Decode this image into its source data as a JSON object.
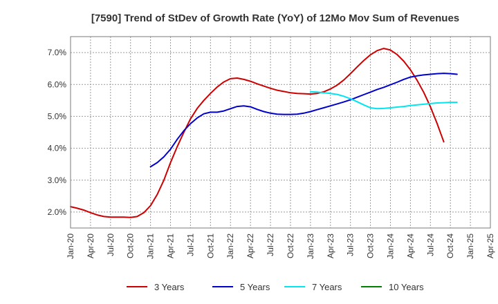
{
  "chart_data": {
    "type": "line",
    "title": "[7590]  Trend of StDev of Growth Rate (YoY) of 12Mo Mov Sum of Revenues",
    "xlabel": "",
    "ylabel": "",
    "x_ticks": [
      "Jan-20",
      "Apr-20",
      "Jul-20",
      "Oct-20",
      "Jan-21",
      "Apr-21",
      "Jul-21",
      "Oct-21",
      "Jan-22",
      "Apr-22",
      "Jul-22",
      "Oct-22",
      "Jan-23",
      "Apr-23",
      "Jul-23",
      "Oct-23",
      "Jan-24",
      "Apr-24",
      "Jul-24",
      "Oct-24",
      "Jan-25",
      "Apr-25"
    ],
    "y_ticks": [
      "2.0%",
      "3.0%",
      "4.0%",
      "5.0%",
      "6.0%",
      "7.0%"
    ],
    "ylim": [
      1.5,
      7.5
    ],
    "grid": true,
    "legend_position": "bottom",
    "series": [
      {
        "name": "3 Years",
        "color": "#cc0000",
        "start_month": 0,
        "values": [
          2.17,
          2.12,
          2.06,
          1.98,
          1.91,
          1.86,
          1.84,
          1.84,
          1.84,
          1.83,
          1.86,
          1.98,
          2.2,
          2.55,
          3.0,
          3.55,
          4.05,
          4.5,
          4.92,
          5.25,
          5.5,
          5.72,
          5.92,
          6.08,
          6.18,
          6.2,
          6.16,
          6.1,
          6.02,
          5.95,
          5.88,
          5.82,
          5.78,
          5.74,
          5.72,
          5.71,
          5.7,
          5.72,
          5.77,
          5.86,
          5.98,
          6.14,
          6.34,
          6.55,
          6.75,
          6.93,
          7.06,
          7.13,
          7.08,
          6.94,
          6.73,
          6.46,
          6.13,
          5.75,
          5.3,
          4.78,
          4.2
        ]
      },
      {
        "name": "5 Years",
        "color": "#0000cc",
        "start_month": 12,
        "values": [
          3.42,
          3.55,
          3.73,
          3.97,
          4.28,
          4.55,
          4.77,
          4.95,
          5.08,
          5.13,
          5.13,
          5.17,
          5.24,
          5.31,
          5.33,
          5.3,
          5.22,
          5.15,
          5.1,
          5.07,
          5.06,
          5.06,
          5.07,
          5.1,
          5.15,
          5.21,
          5.27,
          5.33,
          5.39,
          5.45,
          5.52,
          5.6,
          5.68,
          5.76,
          5.84,
          5.91,
          5.99,
          6.07,
          6.16,
          6.23,
          6.27,
          6.3,
          6.32,
          6.34,
          6.35,
          6.34,
          6.32
        ]
      },
      {
        "name": "7 Years",
        "color": "#00e5ee",
        "start_month": 36,
        "values": [
          5.77,
          5.76,
          5.74,
          5.72,
          5.69,
          5.63,
          5.55,
          5.46,
          5.36,
          5.27,
          5.24,
          5.25,
          5.27,
          5.29,
          5.31,
          5.34,
          5.36,
          5.38,
          5.4,
          5.42,
          5.43,
          5.44,
          5.44
        ]
      },
      {
        "name": "10 Years",
        "color": "#008000",
        "start_month": 0,
        "values": []
      }
    ]
  }
}
